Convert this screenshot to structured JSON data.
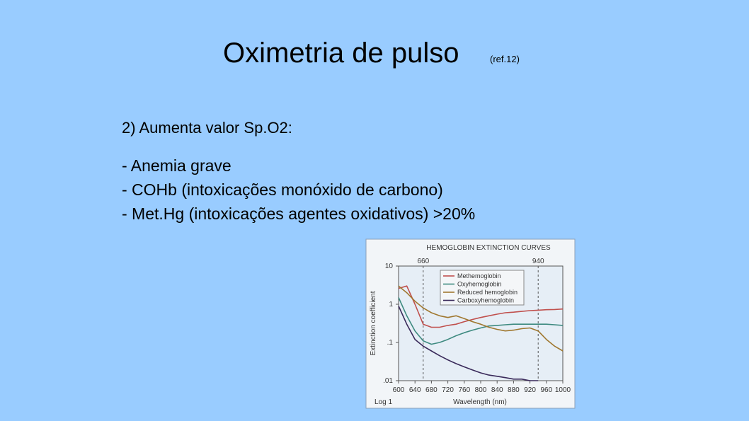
{
  "title": "Oximetria de pulso",
  "ref": "(ref.12)",
  "subtitle": "2) Aumenta valor Sp.O2:",
  "bullets": [
    "- Anemia grave",
    "- COHb  (intoxicações monóxido de carbono)",
    "- Met.Hg  (intoxicações agentes oxidativos) >20%"
  ],
  "chart_data": {
    "type": "line",
    "title": "HEMOGLOBIN EXTINCTION CURVES",
    "xlabel": "Wavelength (nm)",
    "ylabel": "Extinction coefficient",
    "note": "Log 1",
    "log": true,
    "x": [
      600,
      620,
      640,
      660,
      680,
      700,
      720,
      740,
      760,
      780,
      800,
      820,
      840,
      860,
      880,
      900,
      920,
      940,
      960,
      980,
      1000
    ],
    "series": [
      {
        "name": "Methemoglobin",
        "color": "#c0504d",
        "values": [
          2.6,
          3.0,
          1.0,
          0.3,
          0.25,
          0.25,
          0.28,
          0.3,
          0.35,
          0.4,
          0.45,
          0.5,
          0.55,
          0.6,
          0.62,
          0.65,
          0.68,
          0.7,
          0.72,
          0.73,
          0.75
        ]
      },
      {
        "name": "Oxyhemoglobin",
        "color": "#3e8a80",
        "values": [
          1.5,
          0.5,
          0.2,
          0.11,
          0.09,
          0.1,
          0.12,
          0.15,
          0.18,
          0.21,
          0.24,
          0.27,
          0.28,
          0.29,
          0.3,
          0.3,
          0.3,
          0.3,
          0.3,
          0.29,
          0.28
        ]
      },
      {
        "name": "Reduced hemoglobin",
        "color": "#a07830",
        "values": [
          3.0,
          2.0,
          1.2,
          0.8,
          0.6,
          0.5,
          0.45,
          0.5,
          0.42,
          0.35,
          0.3,
          0.25,
          0.22,
          0.2,
          0.21,
          0.23,
          0.24,
          0.2,
          0.12,
          0.08,
          0.06
        ]
      },
      {
        "name": "Carboxyhemoglobin",
        "color": "#3a2a5a",
        "values": [
          0.9,
          0.3,
          0.12,
          0.08,
          0.06,
          0.045,
          0.035,
          0.028,
          0.023,
          0.019,
          0.016,
          0.014,
          0.013,
          0.012,
          0.011,
          0.011,
          0.01,
          0.01,
          null,
          null,
          null
        ]
      }
    ],
    "vlines": [
      660,
      940
    ],
    "xlim": [
      600,
      1000
    ],
    "xticks": [
      600,
      640,
      680,
      720,
      760,
      800,
      840,
      880,
      920,
      960,
      1000
    ],
    "ylim": [
      0.01,
      10
    ],
    "yticks": [
      {
        "value": 0.01,
        "label": ".01"
      },
      {
        "value": 0.1,
        "label": ".1"
      },
      1,
      10
    ],
    "legend": "upper right"
  }
}
